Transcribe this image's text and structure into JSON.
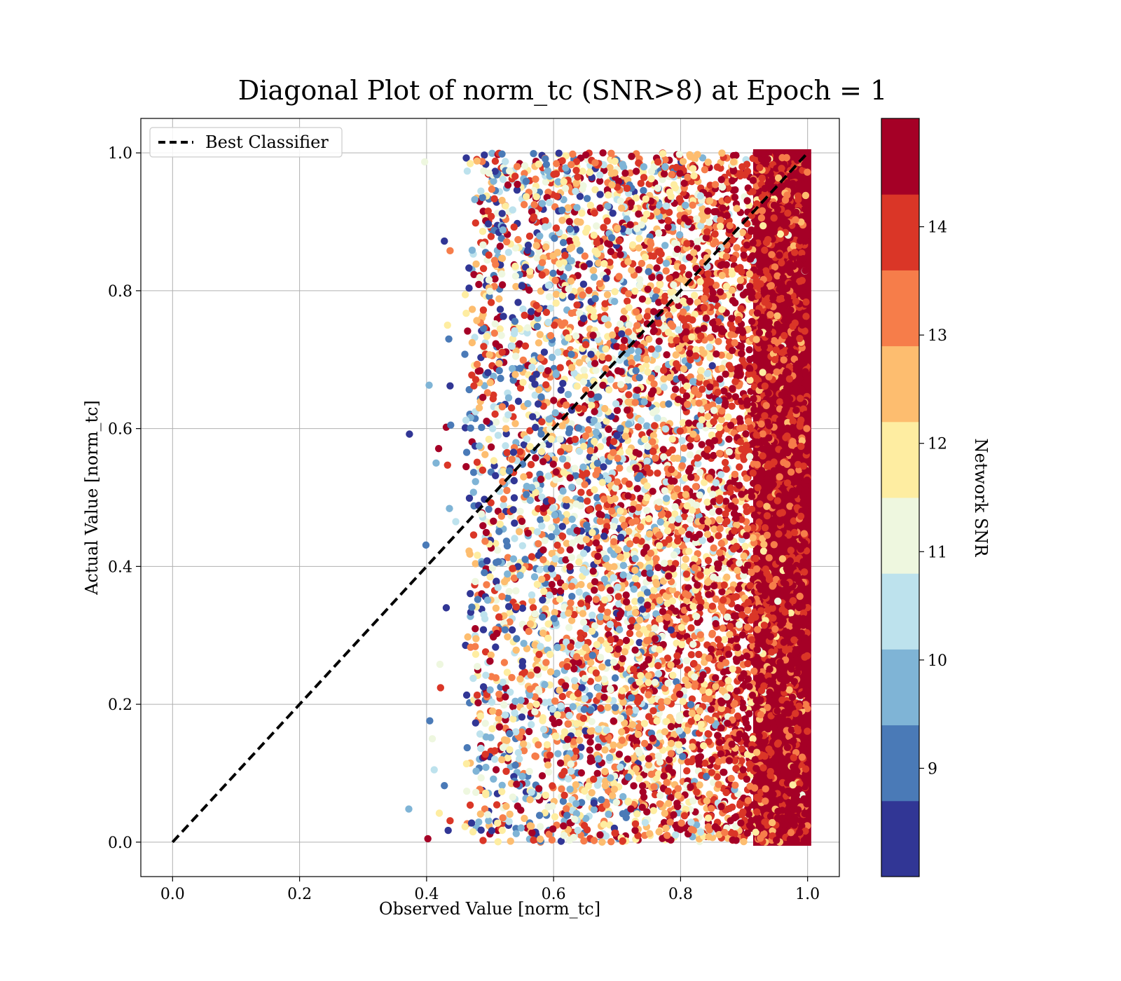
{
  "chart_data": {
    "type": "scatter",
    "title": "Diagonal Plot of norm_tc (SNR>8) at Epoch = 1",
    "xlabel": "Observed Value [norm_tc]",
    "ylabel": "Actual Value [norm_tc]",
    "xlim": [
      -0.05,
      1.05
    ],
    "ylim": [
      -0.05,
      1.05
    ],
    "x_ticks": [
      "0.0",
      "0.2",
      "0.4",
      "0.6",
      "0.8",
      "1.0"
    ],
    "y_ticks": [
      "0.0",
      "0.2",
      "0.4",
      "0.6",
      "0.8",
      "1.0"
    ],
    "grid": true,
    "legend": {
      "position": "top-left",
      "entries": [
        "Best Classifier"
      ]
    },
    "reference_line": {
      "name": "Best Classifier",
      "style": "dashed",
      "color": "#000000",
      "x": [
        0.0,
        1.0
      ],
      "y": [
        0.0,
        1.0
      ]
    },
    "colorbar": {
      "label": "Network SNR",
      "range": [
        8,
        15
      ],
      "tick_values": [
        9,
        10,
        11,
        12,
        13,
        14
      ],
      "tick_labels": [
        "9",
        "10",
        "11",
        "12",
        "13",
        "14"
      ],
      "levels": [
        {
          "min": 8.0,
          "max": 8.7,
          "color": "#313695"
        },
        {
          "min": 8.7,
          "max": 9.4,
          "color": "#4a7ab7"
        },
        {
          "min": 9.4,
          "max": 10.1,
          "color": "#7fb4d6"
        },
        {
          "min": 10.1,
          "max": 10.8,
          "color": "#bde2ed"
        },
        {
          "min": 10.8,
          "max": 11.5,
          "color": "#eef7df"
        },
        {
          "min": 11.5,
          "max": 12.2,
          "color": "#feeda1"
        },
        {
          "min": 12.2,
          "max": 12.9,
          "color": "#fdbd6f"
        },
        {
          "min": 12.9,
          "max": 13.6,
          "color": "#f67d4a"
        },
        {
          "min": 13.6,
          "max": 14.3,
          "color": "#da3627"
        },
        {
          "min": 14.3,
          "max": 15.0,
          "color": "#a50026"
        }
      ]
    },
    "series": [
      {
        "points_x_range": [
          0.37,
          1.0
        ],
        "points_y_range": [
          0.0,
          1.0
        ],
        "points_snr_range": [
          8,
          15
        ],
        "dense_band_x": [
          0.46,
          1.0
        ],
        "saturated_region_x": [
          0.92,
          1.0
        ],
        "saturated_color": "#a50026",
        "outliers": [
          {
            "x": 0.373,
            "y": 0.592,
            "snr": 8.2
          },
          {
            "x": 0.372,
            "y": 0.048,
            "snr": 9.8
          },
          {
            "x": 0.402,
            "y": 0.005,
            "snr": 14.6
          },
          {
            "x": 0.399,
            "y": 0.431,
            "snr": 9.0
          },
          {
            "x": 0.405,
            "y": 0.176,
            "snr": 9.1
          },
          {
            "x": 0.404,
            "y": 0.663,
            "snr": 9.9
          },
          {
            "x": 0.397,
            "y": 0.987,
            "snr": 11.2
          },
          {
            "x": 0.415,
            "y": 0.55,
            "snr": 10.0
          },
          {
            "x": 0.419,
            "y": 0.571,
            "snr": 14.5
          },
          {
            "x": 0.412,
            "y": 0.105,
            "snr": 10.3
          },
          {
            "x": 0.409,
            "y": 0.15,
            "snr": 11.0
          },
          {
            "x": 0.421,
            "y": 0.258,
            "snr": 11.1
          },
          {
            "x": 0.422,
            "y": 0.224,
            "snr": 14.0
          },
          {
            "x": 0.428,
            "y": 0.872,
            "snr": 8.5
          },
          {
            "x": 0.437,
            "y": 0.858,
            "snr": 13.2
          },
          {
            "x": 0.431,
            "y": 0.602,
            "snr": 14.4
          },
          {
            "x": 0.431,
            "y": 0.34,
            "snr": 8.3
          },
          {
            "x": 0.428,
            "y": 0.082,
            "snr": 8.8
          },
          {
            "x": 0.433,
            "y": 0.547,
            "snr": 13.6
          },
          {
            "x": 0.42,
            "y": 0.042,
            "snr": 12.0
          },
          {
            "x": 0.436,
            "y": 0.484,
            "snr": 9.6
          },
          {
            "x": 0.433,
            "y": 0.75,
            "snr": 12.1
          },
          {
            "x": 0.435,
            "y": 0.73,
            "snr": 8.8
          },
          {
            "x": 0.437,
            "y": 0.662,
            "snr": 8.3
          },
          {
            "x": 0.438,
            "y": 0.605,
            "snr": 9.2
          },
          {
            "x": 0.446,
            "y": 0.465,
            "snr": 10.4
          },
          {
            "x": 0.434,
            "y": 0.017,
            "snr": 8.2
          },
          {
            "x": 0.437,
            "y": 0.031,
            "snr": 13.8
          }
        ]
      }
    ]
  }
}
